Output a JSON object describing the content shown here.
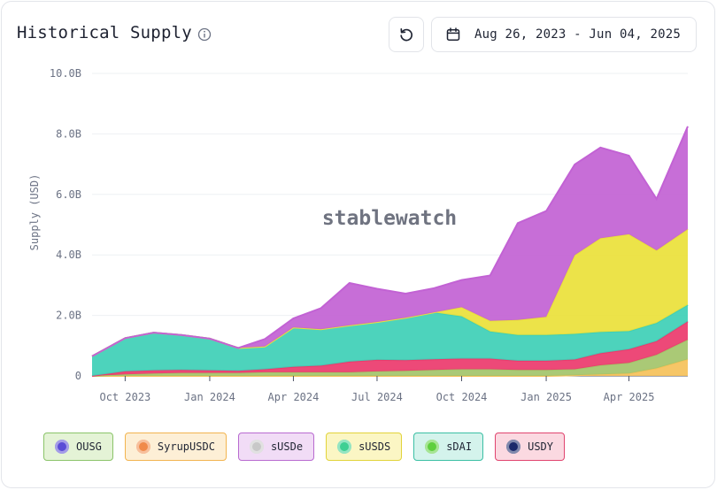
{
  "header": {
    "title": "Historical Supply",
    "date_range": "Aug 26, 2023 - Jun 04, 2025"
  },
  "watermark": "stablewatch",
  "colors": {
    "OUSG": "#a3c46a",
    "SyrupUSDC": "#f5c15a",
    "sUSDe": "#c262d4",
    "sUSDS": "#eae13a",
    "sDAI": "#3ecfb6",
    "USDY": "#ec3a6c"
  },
  "legend": [
    {
      "name": "OUSG",
      "icon": "globe-icon",
      "bg": "#e4f3d6",
      "border": "#8bc46a",
      "dot": "#5a4cd6"
    },
    {
      "name": "SyrupUSDC",
      "icon": "syrup-icon",
      "bg": "#fdefd6",
      "border": "#f2b44f",
      "dot": "#f08a4b"
    },
    {
      "name": "sUSDe",
      "icon": "ethena-icon",
      "bg": "#f1dcf6",
      "border": "#b86ad0",
      "dot": "#c8c8c8"
    },
    {
      "name": "sUSDS",
      "icon": "sky-icon",
      "bg": "#fbf6c4",
      "border": "#e2d33a",
      "dot": "#3ecf93"
    },
    {
      "name": "sDAI",
      "icon": "sdai-icon",
      "bg": "#d4f3ec",
      "border": "#3bbfa4",
      "dot": "#5fcf3e"
    },
    {
      "name": "USDY",
      "icon": "ondo-icon",
      "bg": "#fbd9e1",
      "border": "#e0446e",
      "dot": "#1b2a6b"
    }
  ],
  "chart_data": {
    "type": "area",
    "stacked": true,
    "title": "Historical Supply",
    "xlabel": "",
    "ylabel": "Supply (USD)",
    "ylim": [
      0,
      10.0
    ],
    "y_unit": "B",
    "y_ticks": [
      "0",
      "2.0B",
      "4.0B",
      "6.0B",
      "8.0B",
      "10.0B"
    ],
    "x_ticks": [
      "Oct 2023",
      "Jan 2024",
      "Apr 2024",
      "Jul 2024",
      "Oct 2024",
      "Jan 2025",
      "Apr 2025"
    ],
    "x": [
      "2023-08-26",
      "2023-10-01",
      "2023-11-01",
      "2023-12-01",
      "2024-01-01",
      "2024-02-01",
      "2024-03-01",
      "2024-04-01",
      "2024-05-01",
      "2024-06-01",
      "2024-07-01",
      "2024-08-01",
      "2024-09-01",
      "2024-10-01",
      "2024-11-01",
      "2024-12-01",
      "2025-01-01",
      "2025-02-01",
      "2025-03-01",
      "2025-04-01",
      "2025-05-01",
      "2025-06-04"
    ],
    "series": [
      {
        "name": "SyrupUSDC",
        "values": [
          0,
          0,
          0,
          0,
          0,
          0,
          0,
          0,
          0,
          0,
          0,
          0,
          0,
          0,
          0,
          0,
          0,
          0.02,
          0.05,
          0.08,
          0.25,
          0.55
        ]
      },
      {
        "name": "OUSG",
        "values": [
          0,
          0.05,
          0.08,
          0.1,
          0.1,
          0.1,
          0.12,
          0.12,
          0.12,
          0.12,
          0.15,
          0.17,
          0.2,
          0.22,
          0.22,
          0.2,
          0.2,
          0.2,
          0.3,
          0.35,
          0.45,
          0.65
        ]
      },
      {
        "name": "USDY",
        "values": [
          0,
          0.1,
          0.1,
          0.1,
          0.08,
          0.07,
          0.1,
          0.18,
          0.22,
          0.35,
          0.38,
          0.35,
          0.35,
          0.35,
          0.35,
          0.3,
          0.3,
          0.32,
          0.4,
          0.45,
          0.45,
          0.6
        ]
      },
      {
        "name": "sDAI",
        "values": [
          0.65,
          1.1,
          1.25,
          1.15,
          1.05,
          0.75,
          0.75,
          1.3,
          1.2,
          1.2,
          1.25,
          1.4,
          1.55,
          1.4,
          0.9,
          0.85,
          0.85,
          0.85,
          0.7,
          0.6,
          0.6,
          0.55
        ]
      },
      {
        "name": "sUSDS",
        "values": [
          0,
          0,
          0,
          0,
          0,
          0,
          0,
          0,
          0,
          0,
          0,
          0,
          0,
          0.3,
          0.35,
          0.5,
          0.6,
          2.6,
          3.1,
          3.2,
          2.4,
          2.5
        ]
      },
      {
        "name": "sUSDe",
        "values": [
          0,
          0,
          0,
          0,
          0,
          0,
          0.25,
          0.3,
          0.7,
          1.4,
          1.1,
          0.8,
          0.8,
          0.9,
          1.5,
          3.2,
          3.5,
          3.0,
          3.0,
          2.6,
          1.7,
          3.4
        ]
      }
    ]
  }
}
